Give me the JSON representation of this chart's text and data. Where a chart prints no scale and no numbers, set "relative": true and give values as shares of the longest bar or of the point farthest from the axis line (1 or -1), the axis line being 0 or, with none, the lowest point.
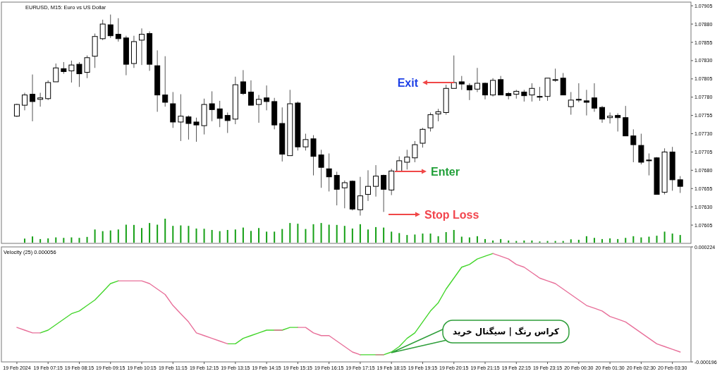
{
  "chart_data": [
    {
      "type": "candlestick",
      "title": "EURUSD, M15: Euro vs US Dollar",
      "tick_labels": "y",
      "categories": [
        null,
        null,
        null,
        null,
        null,
        null,
        null,
        null,
        null,
        null,
        null,
        null,
        null,
        null,
        null,
        null,
        null,
        null,
        null,
        null,
        null,
        null,
        null,
        null,
        null,
        null,
        null,
        null,
        null,
        null,
        null,
        null,
        null,
        null,
        null,
        null,
        null,
        null,
        null,
        null,
        null,
        null,
        null,
        null,
        null,
        null,
        null,
        null,
        null,
        null,
        null,
        null,
        null,
        null,
        null,
        null,
        null,
        null,
        null,
        null,
        null,
        null,
        null,
        null,
        null,
        null,
        null,
        null,
        null,
        null,
        null,
        null,
        null,
        null,
        null,
        null,
        null,
        null,
        null,
        null,
        null,
        null,
        null,
        null,
        null,
        null
      ],
      "ylim": [
        1.0758,
        1.0791
      ],
      "yticks": [
        1.07905,
        {
          "value": 1.0788,
          "label": "1.07880"
        },
        1.07855,
        {
          "value": 1.0783,
          "label": "1.07830"
        },
        1.07805,
        {
          "value": 1.0778,
          "label": "1.07780"
        },
        1.07755,
        {
          "value": 1.0773,
          "label": "1.07730"
        },
        1.07705,
        {
          "value": 1.0768,
          "label": "1.07680"
        },
        1.07655,
        {
          "value": 1.0763,
          "label": "1.07630"
        },
        1.07605
      ],
      "ohlc": [
        [
          1.07754,
          1.07771,
          1.07753,
          1.0777
        ],
        [
          1.07769,
          1.07786,
          1.07762,
          1.07783
        ],
        [
          1.07784,
          1.07811,
          1.07747,
          1.07774
        ],
        [
          1.07777,
          1.07786,
          1.07767,
          1.07779
        ],
        [
          1.07778,
          1.07803,
          1.07776,
          1.078
        ],
        [
          1.07801,
          1.07826,
          1.07801,
          1.0782
        ],
        [
          1.07819,
          1.07828,
          1.07812,
          1.07815
        ],
        [
          1.07816,
          1.0783,
          1.078,
          1.07824
        ],
        [
          1.07825,
          1.07828,
          1.07794,
          1.07812
        ],
        [
          1.07814,
          1.07837,
          1.07806,
          1.07834
        ],
        [
          1.07836,
          1.07867,
          1.0782,
          1.07863
        ],
        [
          1.0786,
          1.07886,
          1.07858,
          1.0788
        ],
        [
          1.07879,
          1.07893,
          1.07861,
          1.07864
        ],
        [
          1.07866,
          1.07888,
          1.07856,
          1.0786
        ],
        [
          1.07861,
          1.07864,
          1.0781,
          1.07825
        ],
        [
          1.07826,
          1.07864,
          1.0782,
          1.07856
        ],
        [
          1.07858,
          1.07874,
          1.07824,
          1.07866
        ],
        [
          1.07867,
          1.0787,
          1.07816,
          1.07825
        ],
        [
          1.07823,
          1.07844,
          1.0776,
          1.07783
        ],
        [
          1.07783,
          1.07836,
          1.07767,
          1.07773
        ],
        [
          1.07771,
          1.07787,
          1.07738,
          1.07746
        ],
        [
          1.07746,
          1.07784,
          1.0772,
          1.07754
        ],
        [
          1.07753,
          1.07755,
          1.07722,
          1.07744
        ],
        [
          1.07746,
          1.07752,
          1.07719,
          1.07742
        ],
        [
          1.07741,
          1.07778,
          1.07729,
          1.0777
        ],
        [
          1.07771,
          1.07788,
          1.07747,
          1.07763
        ],
        [
          1.07764,
          1.07775,
          1.07739,
          1.07751
        ],
        [
          1.07755,
          1.07759,
          1.07731,
          1.07748
        ],
        [
          1.0775,
          1.07808,
          1.07743,
          1.07797
        ],
        [
          1.07801,
          1.07817,
          1.07783,
          1.07785
        ],
        [
          1.07787,
          1.07803,
          1.07769,
          1.07769
        ],
        [
          1.0777,
          1.07783,
          1.07745,
          1.07777
        ],
        [
          1.07779,
          1.07796,
          1.07762,
          1.07774
        ],
        [
          1.07774,
          1.07779,
          1.07736,
          1.07742
        ],
        [
          1.07744,
          1.07766,
          1.07692,
          1.07702
        ],
        [
          1.077,
          1.0779,
          1.077,
          1.07771
        ],
        [
          1.07772,
          1.07774,
          1.07707,
          1.07712
        ],
        [
          1.07712,
          1.0773,
          1.07707,
          1.07722
        ],
        [
          1.07723,
          1.07728,
          1.07673,
          1.07699
        ],
        [
          1.07701,
          1.07708,
          1.07656,
          1.07684
        ],
        [
          1.07682,
          1.07703,
          1.07651,
          1.07671
        ],
        [
          1.07673,
          1.07678,
          1.07632,
          1.07654
        ],
        [
          1.07656,
          1.07666,
          1.07628,
          1.07663
        ],
        [
          1.07665,
          1.07666,
          1.07625,
          1.07627
        ],
        [
          1.07626,
          1.07671,
          1.07618,
          1.07645
        ],
        [
          1.07647,
          1.0768,
          1.07638,
          1.07658
        ],
        [
          1.07658,
          1.07687,
          1.07644,
          1.07672
        ],
        [
          1.07673,
          1.07674,
          1.07623,
          1.07654
        ],
        [
          1.07653,
          1.07682,
          1.07646,
          1.07679
        ],
        [
          1.07678,
          1.07699,
          1.07678,
          1.07693
        ],
        [
          1.07691,
          1.07708,
          1.07681,
          1.07698
        ],
        [
          1.07697,
          1.0772,
          1.07691,
          1.07715
        ],
        [
          1.07717,
          1.07738,
          1.07711,
          1.07736
        ],
        [
          1.07738,
          1.07759,
          1.07733,
          1.07756
        ],
        [
          1.07757,
          1.07764,
          1.07747,
          1.0776
        ],
        [
          1.07759,
          1.07797,
          1.07756,
          1.07792
        ],
        [
          1.07792,
          1.07837,
          1.07792,
          1.078
        ],
        [
          1.07801,
          1.07809,
          1.0779,
          1.07798
        ],
        [
          1.07796,
          1.07799,
          1.07776,
          1.0779
        ],
        [
          1.07791,
          1.0782,
          1.07787,
          1.07799
        ],
        [
          1.07799,
          1.078,
          1.07777,
          1.07783
        ],
        [
          1.07783,
          1.07806,
          1.07781,
          1.07803
        ],
        [
          1.07804,
          1.07809,
          1.07783,
          1.07783
        ],
        [
          1.07785,
          1.07787,
          1.07777,
          1.07782
        ],
        [
          1.07784,
          1.0779,
          1.07778,
          1.07788
        ],
        [
          1.07787,
          1.0779,
          1.07774,
          1.07782
        ],
        [
          1.07783,
          1.07799,
          1.07774,
          1.07792
        ],
        [
          1.07781,
          1.07794,
          1.07775,
          1.0778
        ],
        [
          1.07781,
          1.07806,
          1.07775,
          1.07806
        ],
        [
          1.07803,
          1.07819,
          1.07801,
          1.07804
        ],
        [
          1.07806,
          1.07813,
          1.07783,
          1.07783
        ],
        [
          1.07767,
          1.07787,
          1.07756,
          1.07776
        ],
        [
          1.07777,
          1.07799,
          1.07773,
          1.07776
        ],
        [
          1.07775,
          1.0779,
          1.07755,
          1.07773
        ],
        [
          1.07779,
          1.07799,
          1.0776,
          1.07765
        ],
        [
          1.07766,
          1.07768,
          1.07745,
          1.0775
        ],
        [
          1.07752,
          1.07759,
          1.07744,
          1.07754
        ],
        [
          1.07755,
          1.07758,
          1.07733,
          1.07752
        ],
        [
          1.07752,
          1.07768,
          1.07727,
          1.07727
        ],
        [
          1.07727,
          1.07736,
          1.07691,
          1.07715
        ],
        [
          1.07714,
          1.0773,
          1.07688,
          1.07691
        ],
        [
          1.07694,
          1.07703,
          1.07673,
          1.07693
        ],
        [
          1.07697,
          1.07698,
          1.07647,
          1.07647
        ],
        [
          1.0765,
          1.0771,
          1.07647,
          1.07705
        ],
        [
          1.07705,
          1.07712,
          1.07652,
          1.07667
        ],
        [
          1.07667,
          1.07672,
          1.07649,
          1.07658
        ]
      ],
      "annotations": [
        "Exit",
        "Enter",
        "Stop Loss"
      ]
    },
    {
      "type": "bar",
      "relative": true,
      "tick_labels": false,
      "color": "#16a016",
      "categories": [
        null,
        null,
        null,
        null,
        null,
        null,
        null,
        null,
        null,
        null,
        null,
        null,
        null,
        null,
        null,
        null,
        null,
        null,
        null,
        null,
        null,
        null,
        null,
        null,
        null,
        null,
        null,
        null,
        null,
        null,
        null,
        null,
        null,
        null,
        null,
        null,
        null,
        null,
        null,
        null,
        null,
        null,
        null,
        null,
        null,
        null,
        null,
        null,
        null,
        null,
        null,
        null,
        null,
        null,
        null,
        null,
        null,
        null,
        null,
        null,
        null,
        null,
        null,
        null,
        null,
        null,
        null,
        null,
        null,
        null,
        null,
        null,
        null,
        null,
        null,
        null,
        null,
        null,
        null,
        null,
        null,
        null,
        null,
        null,
        null,
        null
      ],
      "values": [
        null,
        0.17,
        0.26,
        0.15,
        0.18,
        0.22,
        0.2,
        0.22,
        0.2,
        0.24,
        0.55,
        0.48,
        0.51,
        0.55,
        0.75,
        0.74,
        0.61,
        0.82,
        0.75,
        1,
        0.7,
        0.72,
        0.7,
        0.59,
        0.58,
        0.53,
        0.48,
        0.53,
        0.55,
        0.63,
        0.49,
        0.61,
        0.46,
        0.46,
        0.57,
        0.82,
        0.79,
        0.57,
        0.77,
        0.82,
        0.75,
        0.74,
        0.7,
        0.59,
        0.77,
        0.55,
        0.65,
        0.63,
        0.46,
        0.4,
        0.32,
        0.34,
        0.38,
        0.38,
        0.27,
        0.44,
        0.53,
        0.25,
        0.22,
        0.27,
        0.15,
        0.09,
        0.15,
        0.09,
        0.07,
        0.09,
        0.09,
        0.05,
        0.07,
        0.07,
        0.07,
        0.14,
        0.12,
        0.27,
        0.2,
        0.15,
        0.18,
        0.15,
        0.2,
        0.27,
        0.22,
        0.25,
        0.29,
        0.46,
        0.38,
        0.32
      ]
    },
    {
      "type": "line",
      "title": "Velocity (25) 0.000056",
      "ylim": [
        -0.000196,
        0.000224
      ],
      "yticks": [
        0.000224,
        -0.000196
      ],
      "categories": [
        "19 Feb 2024",
        null,
        null,
        null,
        "19 Feb 07:15",
        null,
        null,
        null,
        "19 Feb 08:15",
        null,
        null,
        null,
        "19 Feb 09:15",
        null,
        null,
        null,
        "19 Feb 10:15",
        null,
        null,
        null,
        "19 Feb 11:15",
        null,
        null,
        null,
        "19 Feb 12:15",
        null,
        null,
        null,
        "19 Feb 13:15",
        null,
        null,
        null,
        "19 Feb 14:15",
        null,
        null,
        null,
        "19 Feb 15:15",
        null,
        null,
        null,
        "19 Feb 16:15",
        null,
        null,
        null,
        "19 Feb 17:15",
        null,
        null,
        null,
        "19 Feb 18:15",
        null,
        null,
        null,
        "19 Feb 19:15",
        null,
        null,
        null,
        "19 Feb 20:15",
        null,
        null,
        null,
        "19 Feb 21:15",
        null,
        null,
        null,
        "19 Feb 22:15",
        null,
        null,
        null,
        "19 Feb 23:15",
        null,
        null,
        null,
        "20 Feb 00:30",
        null,
        null,
        null,
        "20 Feb 01:30",
        null,
        null,
        null,
        "20 Feb 02:30",
        null,
        null,
        null,
        "20 Feb 03:30",
        null
      ],
      "series": [
        {
          "color": "#44d62c",
          "values": [
            null,
            null,
            null,
            -9e-05,
            -8e-05,
            -6e-05,
            -4e-05,
            -2e-05,
            -1e-05,
            1e-05,
            3e-05,
            6e-05,
            9e-05,
            0.0001,
            null,
            null,
            null,
            null,
            null,
            null,
            null,
            null,
            null,
            null,
            null,
            null,
            null,
            -0.00013,
            -0.00013,
            -0.00011,
            -0.0001,
            -9e-05,
            -8e-05,
            -8e-05,
            -8e-05,
            -7e-05,
            -7e-05,
            null,
            null,
            null,
            null,
            null,
            null,
            null,
            -0.00017,
            -0.00017,
            -0.00017,
            -0.00017,
            -0.00016,
            -0.00014,
            -0.00011,
            -9e-05,
            -5e-05,
            -1e-05,
            2e-05,
            7e-05,
            0.00011,
            0.00015,
            0.00016,
            0.00018,
            0.00019,
            0.0002,
            null,
            null,
            null,
            null,
            null,
            null,
            null,
            null,
            null,
            null,
            null,
            null,
            null,
            null,
            null,
            null,
            null,
            null,
            null,
            null,
            null,
            null,
            null,
            null
          ]
        },
        {
          "color": "#e8709a",
          "values": [
            -7e-05,
            -8e-05,
            -9e-05,
            -9e-05,
            null,
            null,
            null,
            null,
            null,
            null,
            null,
            null,
            null,
            0.0001,
            0.0001,
            0.0001,
            0.0001,
            9e-05,
            7e-05,
            5e-05,
            1e-05,
            -2e-05,
            -5e-05,
            -9e-05,
            -0.0001,
            -0.00011,
            -0.00012,
            -0.00013,
            null,
            null,
            null,
            null,
            null,
            -8e-05,
            -8e-05,
            null,
            -7e-05,
            -7e-05,
            -9e-05,
            -0.0001,
            -0.0001,
            -0.00012,
            -0.00014,
            -0.00016,
            -0.00017,
            null,
            -0.00017,
            -0.00017,
            null,
            null,
            null,
            null,
            null,
            null,
            null,
            null,
            null,
            null,
            null,
            null,
            null,
            0.0002,
            0.00019,
            0.00018,
            0.00016,
            0.00015,
            0.00013,
            0.00011,
            0.0001,
            9e-05,
            7e-05,
            5e-05,
            3e-05,
            1e-05,
            0,
            -1e-05,
            -3e-05,
            -4e-05,
            -5e-05,
            -7e-05,
            -9e-05,
            -0.00011,
            -0.00013,
            -0.00014,
            -0.00015,
            -0.00016
          ]
        }
      ],
      "annotations": [
        "کراس رنگ | سیگنال خرید"
      ]
    }
  ]
}
